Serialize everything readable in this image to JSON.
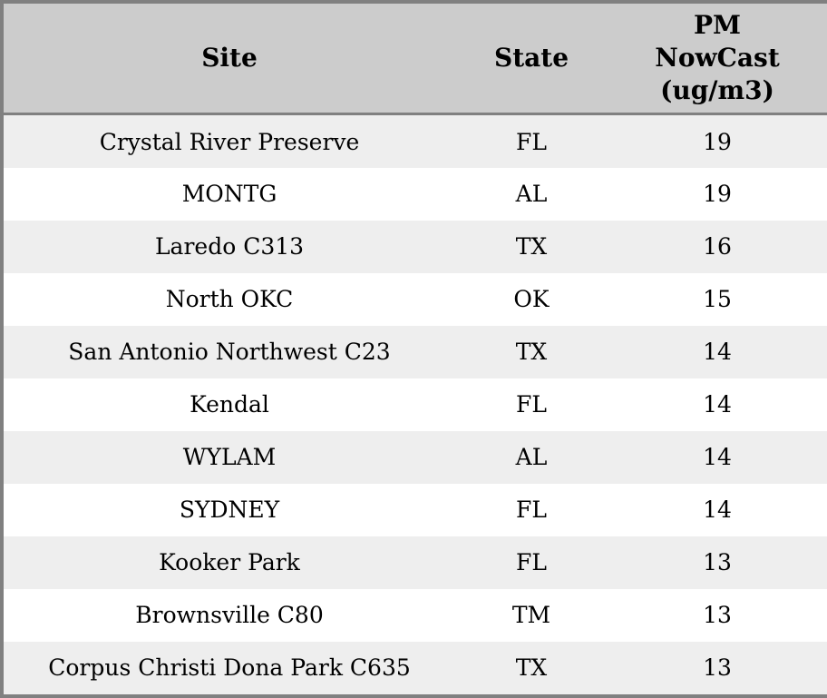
{
  "colors": {
    "border": "#808080",
    "header_bg": "#cccccc",
    "row_alt_bg": "#eeeeee",
    "row_bg": "#ffffff",
    "text": "#000000"
  },
  "chart_data": {
    "type": "table",
    "title": "",
    "columns": [
      "Site",
      "State",
      "PM NowCast (ug/m3)"
    ],
    "rows": [
      {
        "site": "Crystal River Preserve",
        "state": "FL",
        "pm_nowcast": 19
      },
      {
        "site": "MONTG",
        "state": "AL",
        "pm_nowcast": 19
      },
      {
        "site": "Laredo C313",
        "state": "TX",
        "pm_nowcast": 16
      },
      {
        "site": "North OKC",
        "state": "OK",
        "pm_nowcast": 15
      },
      {
        "site": "San Antonio Northwest C23",
        "state": "TX",
        "pm_nowcast": 14
      },
      {
        "site": "Kendal",
        "state": "FL",
        "pm_nowcast": 14
      },
      {
        "site": "WYLAM",
        "state": "AL",
        "pm_nowcast": 14
      },
      {
        "site": "SYDNEY",
        "state": "FL",
        "pm_nowcast": 14
      },
      {
        "site": "Kooker Park",
        "state": "FL",
        "pm_nowcast": 13
      },
      {
        "site": "Brownsville C80",
        "state": "TM",
        "pm_nowcast": 13
      },
      {
        "site": "Corpus Christi Dona Park C635",
        "state": "TX",
        "pm_nowcast": 13
      }
    ],
    "layout": {
      "striped": true,
      "all_cells_centered": true,
      "pm_header_wraps_to_lines": [
        "PM",
        "NowCast",
        "(ug/m3)"
      ]
    }
  }
}
